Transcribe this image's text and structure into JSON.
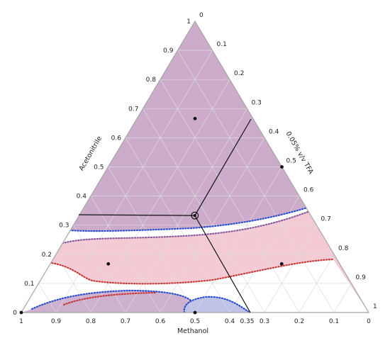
{
  "chart_data": {
    "type": "ternary",
    "axes": {
      "acetonitrile": {
        "label": "Acetonitrile",
        "ticks": [
          "0",
          "0.1",
          "0.2",
          "0.3",
          "0.4",
          "0.5",
          "0.6",
          "0.7",
          "0.8",
          "0.9",
          "1"
        ]
      },
      "tfa": {
        "label": "0.05% v/v TFA",
        "ticks": [
          "0",
          "0.1",
          "0.2",
          "0.3",
          "0.4",
          "0.5",
          "0.6",
          "0.7",
          "0.8",
          "0.9",
          "1"
        ]
      },
      "methanol": {
        "label": "Methanol",
        "ticks": [
          "0",
          "0.1",
          "0.2",
          "0.3",
          "0.35",
          "0.4",
          "0.5",
          "0.6",
          "0.7",
          "0.8",
          "0.9",
          "1"
        ]
      }
    },
    "grid": true,
    "regions": [
      {
        "name": "upper",
        "color": "#c7a3c4"
      },
      {
        "name": "middle",
        "color": "#f2c2cc"
      },
      {
        "name": "lower",
        "color": "#c9a9c9"
      },
      {
        "name": "lower-right",
        "color": "#b9bde6"
      }
    ],
    "boundary_dots": [
      "#2b4fcf",
      "#c83a3a"
    ],
    "design_points": [
      {
        "acetonitrile": 0.666,
        "tfa": 0.167,
        "methanol": 0.167
      },
      {
        "acetonitrile": 0.5,
        "tfa": 0.5,
        "methanol": 0.0
      },
      {
        "acetonitrile": 0.167,
        "tfa": 0.167,
        "methanol": 0.666
      },
      {
        "acetonitrile": 0.167,
        "tfa": 0.666,
        "methanol": 0.167
      },
      {
        "acetonitrile": 0.0,
        "tfa": 0.5,
        "methanol": 0.5
      },
      {
        "acetonitrile": 0.0,
        "tfa": 0.0,
        "methanol": 1.0
      }
    ],
    "centroid": {
      "acetonitrile": 0.333,
      "tfa": 0.333,
      "methanol": 0.333
    },
    "optimum_lines": {
      "color": "#111111"
    }
  }
}
